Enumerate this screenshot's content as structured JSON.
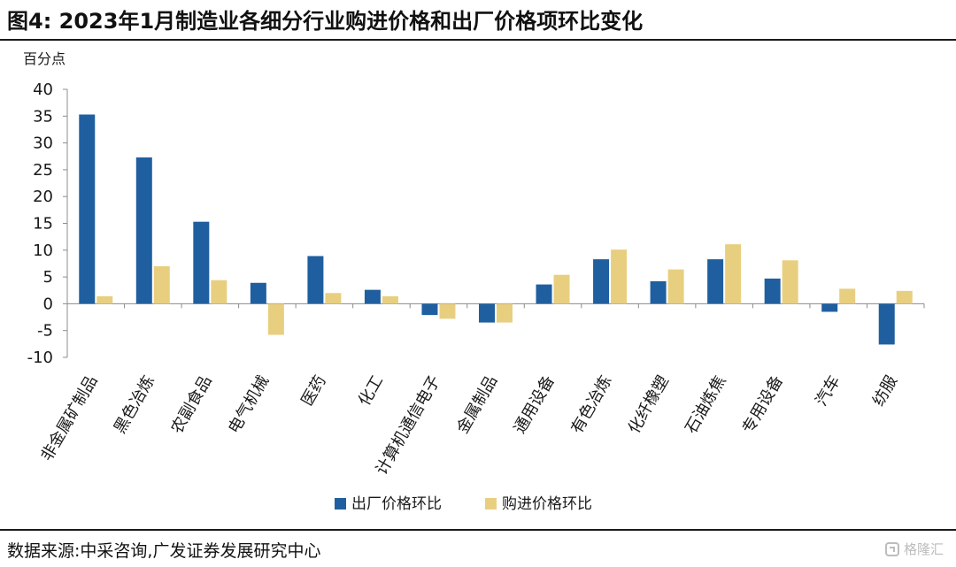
{
  "figure": {
    "title": "图4:  2023年1月制造业各细分行业购进价格和出厂价格项环比变化",
    "source": "数据来源:中采咨询,广发证券发展研究中心",
    "watermark": "格隆汇"
  },
  "chart_data": {
    "type": "bar",
    "title": "",
    "ylabel": "百分点",
    "xlabel": "",
    "ylim": [
      -10,
      40
    ],
    "yticks": [
      40,
      35,
      30,
      25,
      20,
      15,
      10,
      5,
      0,
      -5,
      -10
    ],
    "grid": false,
    "legend_position": "bottom",
    "categories": [
      "非金属矿制品",
      "黑色冶炼",
      "农副食品",
      "电气机械",
      "医药",
      "化工",
      "计算机通信电子",
      "金属制品",
      "通用设备",
      "有色冶炼",
      "化纤橡塑",
      "石油炼焦",
      "专用设备",
      "汽车",
      "纺服"
    ],
    "series": [
      {
        "name": "出厂价格环比",
        "color": "#1f5fa0",
        "values": [
          35.3,
          27.3,
          15.3,
          3.9,
          8.9,
          2.6,
          -2.1,
          -3.5,
          3.6,
          8.3,
          4.2,
          8.3,
          4.7,
          -1.5,
          -7.6
        ]
      },
      {
        "name": "购进价格环比",
        "color": "#e8cf80",
        "values": [
          1.4,
          7.0,
          4.4,
          -5.8,
          2.0,
          1.4,
          -2.8,
          -3.5,
          5.4,
          10.1,
          6.4,
          11.1,
          8.1,
          2.8,
          2.4
        ]
      }
    ]
  }
}
